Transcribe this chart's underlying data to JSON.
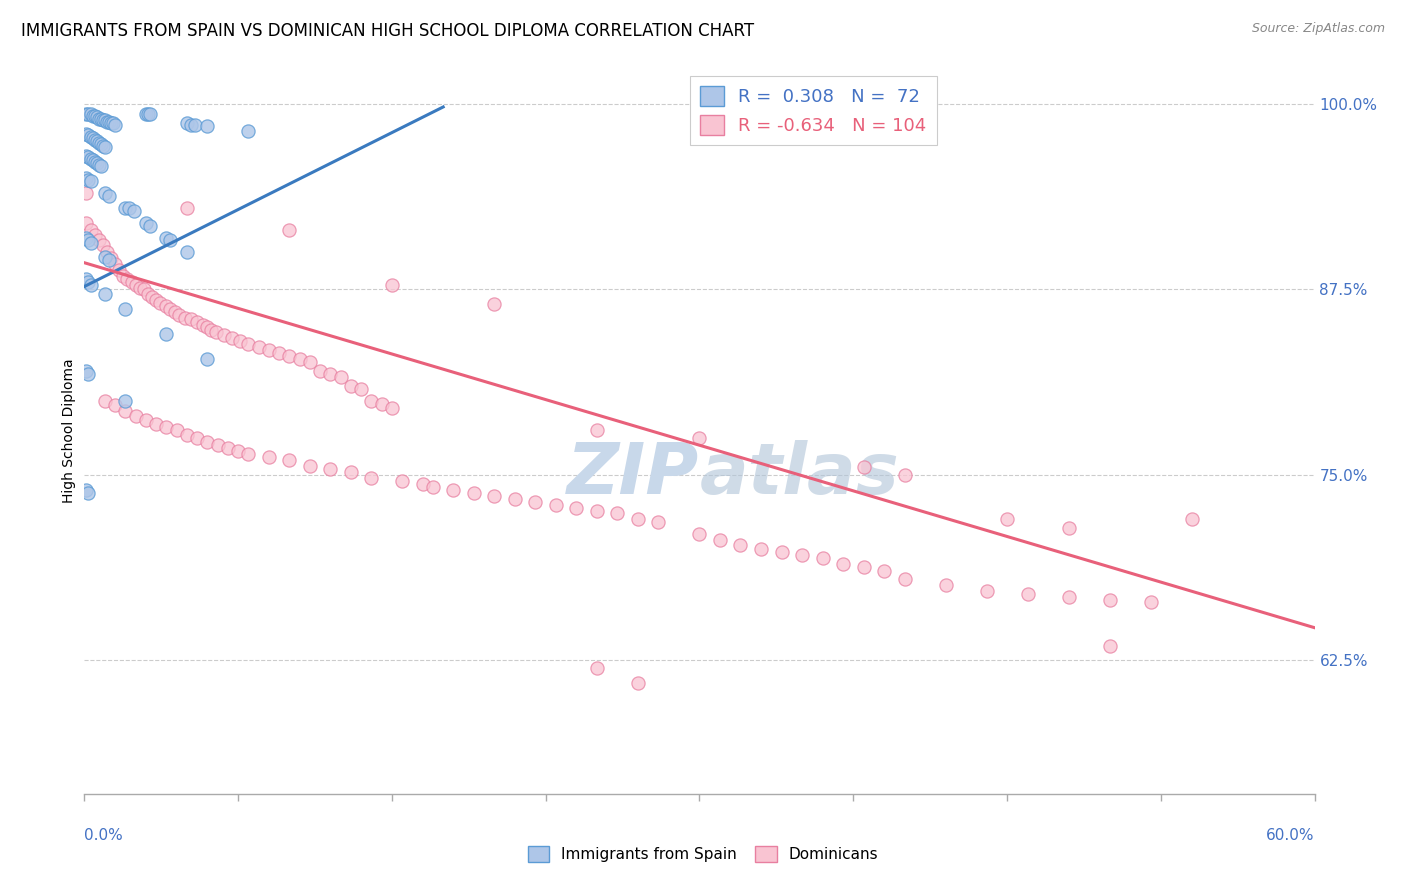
{
  "title": "IMMIGRANTS FROM SPAIN VS DOMINICAN HIGH SCHOOL DIPLOMA CORRELATION CHART",
  "source": "Source: ZipAtlas.com",
  "ylabel": "High School Diploma",
  "right_ytick_labels": [
    "100.0%",
    "87.5%",
    "75.0%",
    "62.5%"
  ],
  "right_yticks": [
    1.0,
    0.875,
    0.75,
    0.625
  ],
  "xmin": 0.0,
  "xmax": 0.6,
  "ymin": 0.535,
  "ymax": 1.025,
  "legend_label_spain": "Immigrants from Spain",
  "legend_label_dominicans": "Dominicans",
  "blue_fill_color": "#aec6e8",
  "blue_edge_color": "#5b9bd5",
  "pink_fill_color": "#f9c4d2",
  "pink_edge_color": "#e87fa0",
  "blue_line_color": "#3a7abf",
  "pink_line_color": "#e8607a",
  "watermark_color": "#c8d8ea",
  "blue_line_x": [
    0.0,
    0.175
  ],
  "blue_line_y": [
    0.877,
    0.998
  ],
  "pink_line_x": [
    0.0,
    0.6
  ],
  "pink_line_y": [
    0.893,
    0.647
  ],
  "blue_points": [
    [
      0.001,
      0.993
    ],
    [
      0.002,
      0.993
    ],
    [
      0.003,
      0.993
    ],
    [
      0.004,
      0.992
    ],
    [
      0.005,
      0.992
    ],
    [
      0.006,
      0.991
    ],
    [
      0.007,
      0.99
    ],
    [
      0.008,
      0.99
    ],
    [
      0.009,
      0.989
    ],
    [
      0.01,
      0.989
    ],
    [
      0.011,
      0.988
    ],
    [
      0.012,
      0.988
    ],
    [
      0.013,
      0.987
    ],
    [
      0.014,
      0.987
    ],
    [
      0.015,
      0.986
    ],
    [
      0.001,
      0.98
    ],
    [
      0.002,
      0.979
    ],
    [
      0.003,
      0.978
    ],
    [
      0.004,
      0.977
    ],
    [
      0.005,
      0.976
    ],
    [
      0.006,
      0.975
    ],
    [
      0.007,
      0.974
    ],
    [
      0.008,
      0.973
    ],
    [
      0.009,
      0.972
    ],
    [
      0.01,
      0.971
    ],
    [
      0.001,
      0.965
    ],
    [
      0.002,
      0.964
    ],
    [
      0.003,
      0.963
    ],
    [
      0.004,
      0.962
    ],
    [
      0.005,
      0.961
    ],
    [
      0.006,
      0.96
    ],
    [
      0.007,
      0.959
    ],
    [
      0.008,
      0.958
    ],
    [
      0.03,
      0.993
    ],
    [
      0.031,
      0.993
    ],
    [
      0.032,
      0.993
    ],
    [
      0.05,
      0.987
    ],
    [
      0.052,
      0.986
    ],
    [
      0.054,
      0.986
    ],
    [
      0.06,
      0.985
    ],
    [
      0.08,
      0.982
    ],
    [
      0.001,
      0.95
    ],
    [
      0.002,
      0.949
    ],
    [
      0.003,
      0.948
    ],
    [
      0.01,
      0.94
    ],
    [
      0.012,
      0.938
    ],
    [
      0.02,
      0.93
    ],
    [
      0.022,
      0.93
    ],
    [
      0.024,
      0.928
    ],
    [
      0.03,
      0.92
    ],
    [
      0.032,
      0.918
    ],
    [
      0.04,
      0.91
    ],
    [
      0.042,
      0.908
    ],
    [
      0.05,
      0.9
    ],
    [
      0.001,
      0.91
    ],
    [
      0.002,
      0.908
    ],
    [
      0.003,
      0.906
    ],
    [
      0.01,
      0.897
    ],
    [
      0.012,
      0.895
    ],
    [
      0.001,
      0.882
    ],
    [
      0.002,
      0.88
    ],
    [
      0.003,
      0.878
    ],
    [
      0.01,
      0.872
    ],
    [
      0.02,
      0.862
    ],
    [
      0.04,
      0.845
    ],
    [
      0.06,
      0.828
    ],
    [
      0.001,
      0.82
    ],
    [
      0.002,
      0.818
    ],
    [
      0.02,
      0.8
    ],
    [
      0.001,
      0.74
    ],
    [
      0.002,
      0.738
    ]
  ],
  "pink_points": [
    [
      0.001,
      0.92
    ],
    [
      0.003,
      0.915
    ],
    [
      0.005,
      0.912
    ],
    [
      0.007,
      0.908
    ],
    [
      0.009,
      0.905
    ],
    [
      0.011,
      0.9
    ],
    [
      0.013,
      0.896
    ],
    [
      0.015,
      0.892
    ],
    [
      0.017,
      0.888
    ],
    [
      0.019,
      0.884
    ],
    [
      0.021,
      0.882
    ],
    [
      0.023,
      0.88
    ],
    [
      0.025,
      0.878
    ],
    [
      0.027,
      0.876
    ],
    [
      0.029,
      0.875
    ],
    [
      0.031,
      0.872
    ],
    [
      0.033,
      0.87
    ],
    [
      0.035,
      0.868
    ],
    [
      0.037,
      0.866
    ],
    [
      0.04,
      0.864
    ],
    [
      0.042,
      0.862
    ],
    [
      0.044,
      0.86
    ],
    [
      0.046,
      0.858
    ],
    [
      0.049,
      0.856
    ],
    [
      0.052,
      0.855
    ],
    [
      0.055,
      0.853
    ],
    [
      0.058,
      0.851
    ],
    [
      0.06,
      0.85
    ],
    [
      0.062,
      0.848
    ],
    [
      0.064,
      0.846
    ],
    [
      0.068,
      0.844
    ],
    [
      0.072,
      0.842
    ],
    [
      0.076,
      0.84
    ],
    [
      0.08,
      0.838
    ],
    [
      0.085,
      0.836
    ],
    [
      0.09,
      0.834
    ],
    [
      0.095,
      0.832
    ],
    [
      0.1,
      0.83
    ],
    [
      0.105,
      0.828
    ],
    [
      0.11,
      0.826
    ],
    [
      0.115,
      0.82
    ],
    [
      0.12,
      0.818
    ],
    [
      0.125,
      0.816
    ],
    [
      0.13,
      0.81
    ],
    [
      0.135,
      0.808
    ],
    [
      0.14,
      0.8
    ],
    [
      0.145,
      0.798
    ],
    [
      0.15,
      0.795
    ],
    [
      0.01,
      0.8
    ],
    [
      0.015,
      0.797
    ],
    [
      0.02,
      0.793
    ],
    [
      0.025,
      0.79
    ],
    [
      0.03,
      0.787
    ],
    [
      0.035,
      0.784
    ],
    [
      0.04,
      0.782
    ],
    [
      0.045,
      0.78
    ],
    [
      0.05,
      0.777
    ],
    [
      0.055,
      0.775
    ],
    [
      0.06,
      0.772
    ],
    [
      0.065,
      0.77
    ],
    [
      0.07,
      0.768
    ],
    [
      0.075,
      0.766
    ],
    [
      0.08,
      0.764
    ],
    [
      0.09,
      0.762
    ],
    [
      0.1,
      0.76
    ],
    [
      0.11,
      0.756
    ],
    [
      0.12,
      0.754
    ],
    [
      0.13,
      0.752
    ],
    [
      0.14,
      0.748
    ],
    [
      0.155,
      0.746
    ],
    [
      0.165,
      0.744
    ],
    [
      0.17,
      0.742
    ],
    [
      0.18,
      0.74
    ],
    [
      0.19,
      0.738
    ],
    [
      0.2,
      0.736
    ],
    [
      0.21,
      0.734
    ],
    [
      0.22,
      0.732
    ],
    [
      0.23,
      0.73
    ],
    [
      0.24,
      0.728
    ],
    [
      0.25,
      0.726
    ],
    [
      0.26,
      0.724
    ],
    [
      0.27,
      0.72
    ],
    [
      0.28,
      0.718
    ],
    [
      0.3,
      0.71
    ],
    [
      0.31,
      0.706
    ],
    [
      0.32,
      0.703
    ],
    [
      0.33,
      0.7
    ],
    [
      0.34,
      0.698
    ],
    [
      0.35,
      0.696
    ],
    [
      0.36,
      0.694
    ],
    [
      0.37,
      0.69
    ],
    [
      0.38,
      0.688
    ],
    [
      0.39,
      0.685
    ],
    [
      0.4,
      0.68
    ],
    [
      0.42,
      0.676
    ],
    [
      0.44,
      0.672
    ],
    [
      0.46,
      0.67
    ],
    [
      0.48,
      0.668
    ],
    [
      0.5,
      0.666
    ],
    [
      0.52,
      0.664
    ],
    [
      0.54,
      0.72
    ],
    [
      0.001,
      0.94
    ],
    [
      0.05,
      0.93
    ],
    [
      0.15,
      0.878
    ],
    [
      0.2,
      0.865
    ],
    [
      0.25,
      0.78
    ],
    [
      0.3,
      0.775
    ],
    [
      0.1,
      0.915
    ],
    [
      0.25,
      0.62
    ],
    [
      0.27,
      0.61
    ],
    [
      0.38,
      0.755
    ],
    [
      0.4,
      0.75
    ],
    [
      0.45,
      0.72
    ],
    [
      0.48,
      0.714
    ],
    [
      0.5,
      0.635
    ]
  ]
}
